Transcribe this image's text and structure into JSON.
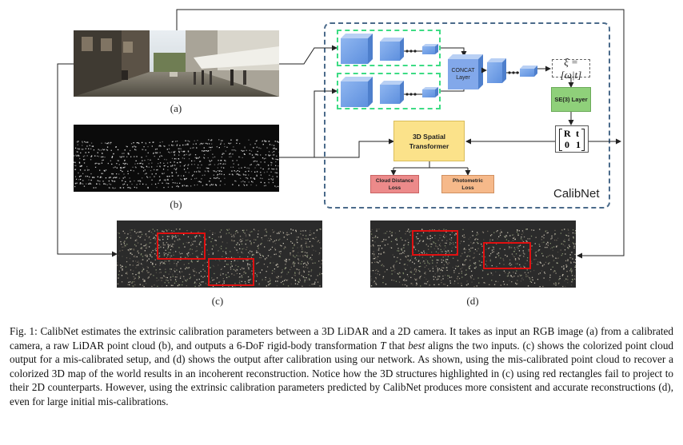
{
  "panels": {
    "a": "(a)",
    "b": "(b)",
    "c": "(c)",
    "d": "(d)"
  },
  "network": {
    "name": "CalibNet",
    "concat_label": "CONCAT Layer",
    "xi_label": "ξ = [ω|t]",
    "se3_label": "SE(3) Layer",
    "matrix": {
      "r00": "R",
      "r01": "t",
      "r10": "0",
      "r11": "1"
    },
    "spatial_transformer": "3D Spatial Transformer",
    "cloud_loss": "Cloud Distance Loss",
    "photometric_loss": "Photometric Loss"
  },
  "colors": {
    "block_blue": "#6f9fe6",
    "dashed_green": "#3ddc84",
    "dashed_outer": "#4a6a8a",
    "se3_green": "#8fd07a",
    "st_yellow": "#fbe28a",
    "cloud_red": "#ec8a8a",
    "photo_orange": "#f6b98a",
    "highlight_red": "#e01010"
  },
  "caption": {
    "p1": "Fig. 1: CalibNet estimates the extrinsic calibration parameters between a 3D LiDAR and a 2D camera. It takes as input an RGB image (a) from a calibrated camera, a raw LiDAR point cloud (b), and outputs a 6-DoF rigid-body transformation ",
    "t_symbol": "T",
    "p2": " that ",
    "best": "best",
    "p3": " aligns the two inputs. (c) shows the colorized point cloud output for a mis-calibrated setup, and (d) shows the output after calibration using our network. As shown, using the mis-calibrated point cloud to recover a colorized 3D map of the world results in an incoherent reconstruction. Notice how the 3D structures highlighted in (c) using red rectangles fail to project to their 2D counterparts. However, using the extrinsic calibration parameters predicted by CalibNet produces more consistent and accurate reconstructions (d), even for large initial mis-calibrations."
  }
}
